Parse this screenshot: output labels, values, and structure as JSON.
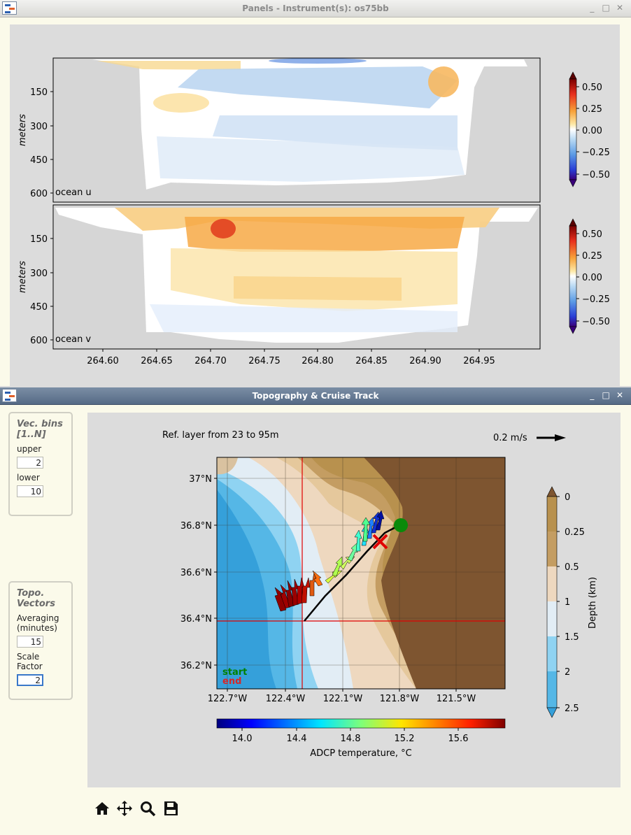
{
  "panels_window": {
    "title": "Panels - Instrument(s): os75bb",
    "buttons": [
      "_",
      "□",
      "✕"
    ],
    "top_panel_label": "ocean u",
    "bottom_panel_label": "ocean v",
    "ylabel": "meters",
    "y_ticks": [
      "150",
      "300",
      "450",
      "600"
    ],
    "x_ticks": [
      "264.60",
      "264.65",
      "264.70",
      "264.75",
      "264.80",
      "264.85",
      "264.90",
      "264.95"
    ],
    "colorbar_ticks": [
      "0.50",
      "0.25",
      "0.00",
      "−0.25",
      "−0.50"
    ]
  },
  "topo_window": {
    "title": "Topography & Cruise Track",
    "buttons": [
      "_",
      "□",
      "✕"
    ],
    "vec_bins": {
      "title_line1": "Vec. bins",
      "title_line2": "[1..N]",
      "upper_label": "upper",
      "upper_value": "2",
      "lower_label": "lower",
      "lower_value": "10"
    },
    "topo_vectors": {
      "title_line1": "Topo.",
      "title_line2": "Vectors",
      "averaging_label_1": "Averaging",
      "averaging_label_2": "(minutes)",
      "averaging_value": "15",
      "scale_label_1": "Scale",
      "scale_label_2": "Factor",
      "scale_value": "2"
    },
    "ref_layer_text": "Ref. layer from 23 to 95m",
    "scale_arrow_text": "0.2 m/s",
    "lat_ticks": [
      "37°N",
      "36.8°N",
      "36.6°N",
      "36.4°N",
      "36.2°N"
    ],
    "lon_ticks": [
      "122.7°W",
      "122.4°W",
      "122.1°W",
      "121.8°W",
      "121.5°W"
    ],
    "start_label": "start",
    "end_label": "end",
    "depth_ticks": [
      "0",
      "0.25",
      "0.5",
      "1",
      "1.5",
      "2",
      "2.5"
    ],
    "depth_label": "Depth (km)",
    "temp_ticks": [
      "14.0",
      "14.4",
      "14.8",
      "15.2",
      "15.6"
    ],
    "temp_label": "ADCP temperature, °C",
    "colors": {
      "start": "#008000",
      "end": "#d62728",
      "track": "#000000",
      "crosshair": "#e00000"
    },
    "toolbar": [
      "home-icon",
      "move-icon",
      "zoom-icon",
      "save-icon"
    ]
  }
}
